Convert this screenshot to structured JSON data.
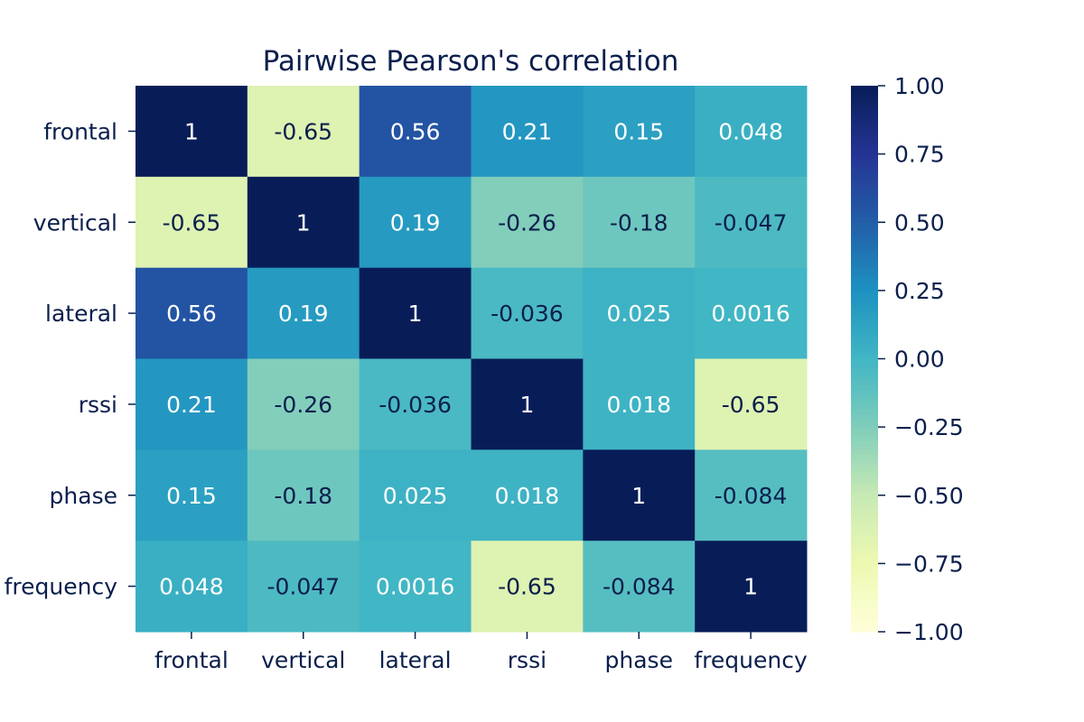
{
  "chart_data": {
    "type": "heatmap",
    "title": "Pairwise Pearson's correlation",
    "x_labels": [
      "frontal",
      "vertical",
      "lateral",
      "rssi",
      "phase",
      "frequency"
    ],
    "y_labels": [
      "frontal",
      "vertical",
      "lateral",
      "rssi",
      "phase",
      "frequency"
    ],
    "annotations": [
      [
        "1",
        "-0.65",
        "0.56",
        "0.21",
        "0.15",
        "0.048"
      ],
      [
        "-0.65",
        "1",
        "0.19",
        "-0.26",
        "-0.18",
        "-0.047"
      ],
      [
        "0.56",
        "0.19",
        "1",
        "-0.036",
        "0.025",
        "0.0016"
      ],
      [
        "0.21",
        "-0.26",
        "-0.036",
        "1",
        "0.018",
        "-0.65"
      ],
      [
        "0.15",
        "-0.18",
        "0.025",
        "0.018",
        "1",
        "-0.084"
      ],
      [
        "0.048",
        "-0.047",
        "0.0016",
        "-0.65",
        "-0.084",
        "1"
      ]
    ],
    "values": [
      [
        1,
        -0.65,
        0.56,
        0.21,
        0.15,
        0.048
      ],
      [
        -0.65,
        1,
        0.19,
        -0.26,
        -0.18,
        -0.047
      ],
      [
        0.56,
        0.19,
        1,
        -0.036,
        0.025,
        0.0016
      ],
      [
        0.21,
        -0.26,
        -0.036,
        1,
        0.018,
        -0.65
      ],
      [
        0.15,
        -0.18,
        0.025,
        0.018,
        1,
        -0.084
      ],
      [
        0.048,
        -0.047,
        0.0016,
        -0.65,
        -0.084,
        1
      ]
    ],
    "colorbar": {
      "min": -1.0,
      "max": 1.0,
      "ticks": [
        1.0,
        0.75,
        0.5,
        0.25,
        0.0,
        -0.25,
        -0.5,
        -0.75,
        -1.0
      ],
      "tick_labels": [
        "1.00",
        "0.75",
        "0.50",
        "0.25",
        "0.00",
        "−0.25",
        "−0.50",
        "−0.75",
        "−1.00"
      ]
    },
    "colormap": "YlGnBu",
    "colors": {
      "text_dark": "#0b1f4d",
      "text_light": "#ffffff",
      "tick": "#0b1f4d"
    }
  }
}
